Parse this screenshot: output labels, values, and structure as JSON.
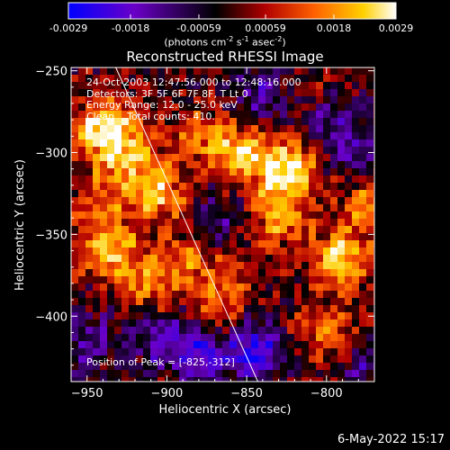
{
  "chart_data": {
    "type": "heatmap",
    "title": "Reconstructed RHESSI Image",
    "xlabel": "Heliocentric X (arcsec)",
    "ylabel": "Heliocentric Y (arcsec)",
    "xlim": [
      -960,
      -770
    ],
    "ylim": [
      -440,
      -248
    ],
    "xticks": [
      -950,
      -900,
      -850,
      -800
    ],
    "yticks": [
      -250,
      -300,
      -350,
      -400
    ],
    "colorbar": {
      "ticks": [
        "-0.0029",
        "-0.0018",
        "-0.00059",
        "0.00059",
        "0.0018",
        "0.0029"
      ],
      "tick_values": [
        -0.0029,
        -0.0018,
        -0.00059,
        0.00059,
        0.0018,
        0.0029
      ],
      "units_base": "(photons cm",
      "units_exp1": "-2",
      "units_mid1": " s",
      "units_exp2": "-1",
      "units_mid2": " asec",
      "units_exp3": "-2",
      "units_end": ")",
      "colormap": [
        "#0000ff",
        "#6a00c8",
        "#000000",
        "#b00000",
        "#ff6000",
        "#ffd000",
        "#ffffff"
      ]
    },
    "hotspots": [
      {
        "x": -940,
        "y": -285,
        "value": 0.0025
      },
      {
        "x": -905,
        "y": -325,
        "value": 0.002
      },
      {
        "x": -880,
        "y": -290,
        "value": 0.0012
      },
      {
        "x": -855,
        "y": -300,
        "value": 0.0022
      },
      {
        "x": -830,
        "y": -340,
        "value": 0.0018
      },
      {
        "x": -825,
        "y": -312,
        "value": 0.0029
      },
      {
        "x": -790,
        "y": -365,
        "value": 0.0024
      },
      {
        "x": -775,
        "y": -330,
        "value": 0.0015
      },
      {
        "x": -940,
        "y": -330,
        "value": 0.0013
      },
      {
        "x": -935,
        "y": -360,
        "value": 0.002
      },
      {
        "x": -910,
        "y": -380,
        "value": 0.0016
      },
      {
        "x": -885,
        "y": -365,
        "value": 0.0012
      },
      {
        "x": -860,
        "y": -380,
        "value": 0.001
      },
      {
        "x": -800,
        "y": -410,
        "value": 0.0014
      },
      {
        "x": -810,
        "y": -270,
        "value": 0.0008
      },
      {
        "x": -870,
        "y": -400,
        "value": 0.0011
      },
      {
        "x": -925,
        "y": -300,
        "value": 0.0018
      },
      {
        "x": -800,
        "y": -295,
        "value": 0.001
      }
    ],
    "coldspots": [
      {
        "x": -845,
        "y": -420,
        "value": -0.0025
      },
      {
        "x": -800,
        "y": -280,
        "value": -0.002
      },
      {
        "x": -785,
        "y": -300,
        "value": -0.0018
      },
      {
        "x": -880,
        "y": -420,
        "value": -0.0022
      },
      {
        "x": -840,
        "y": -265,
        "value": -0.0016
      },
      {
        "x": -905,
        "y": -415,
        "value": -0.0015
      },
      {
        "x": -775,
        "y": -430,
        "value": -0.0012
      },
      {
        "x": -950,
        "y": -415,
        "value": -0.0014
      },
      {
        "x": -865,
        "y": -340,
        "value": -0.001
      }
    ],
    "limb_line": [
      {
        "x": -932,
        "y": -248
      },
      {
        "x": -843,
        "y": -440
      }
    ],
    "annotations": {
      "time": "24-Oct-2003 12:47:56.000 to 12:48:16.000",
      "detectors": "Detectors: 3F 5F 6F 7F 8F, T Lt 0",
      "energy": "Energy Range: 12.0 - 25.0 keV",
      "clean": "Clean    Total counts: 410.",
      "peak": "Position of Peak = [-825,-312]"
    }
  },
  "footer": {
    "timestamp": "6-May-2022 15:17"
  }
}
